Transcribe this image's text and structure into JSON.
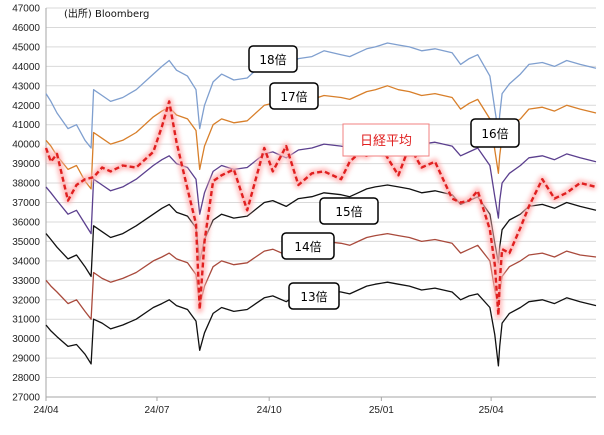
{
  "source": "(出所) Bloomberg",
  "chart_data": {
    "type": "line",
    "title": "",
    "xlabel": "",
    "ylabel": "",
    "ylim": [
      27000,
      47000
    ],
    "yticks": [
      27000,
      28000,
      29000,
      30000,
      31000,
      32000,
      33000,
      34000,
      35000,
      36000,
      37000,
      38000,
      39000,
      40000,
      41000,
      42000,
      43000,
      44000,
      45000,
      46000,
      47000
    ],
    "ytick_labels": [
      "27000",
      "28000",
      "29000",
      "30000",
      "31000",
      "32000",
      "33000",
      "34000",
      "35000",
      "36000",
      "37000",
      "38000",
      "39000",
      "40000",
      "41000",
      "42000",
      "43000",
      "44000",
      "45000",
      "46000",
      "47000"
    ],
    "xlim": [
      "2024-04-01",
      "2025-06-26"
    ],
    "xticks": [
      "2024-04-01",
      "2024-07-01",
      "2024-10-01",
      "2025-01-01",
      "2025-04-01"
    ],
    "xtick_labels": [
      "24/04",
      "24/07",
      "24/10",
      "25/01",
      "25/04"
    ],
    "grid": "horizontal",
    "series": [
      {
        "name": "18倍",
        "color": "#7f9fcf",
        "x": [
          "2024-04-01",
          "2024-04-05",
          "2024-04-10",
          "2024-04-19",
          "2024-04-26",
          "2024-05-03",
          "2024-05-08",
          "2024-05-10",
          "2024-05-17",
          "2024-05-24",
          "2024-06-03",
          "2024-06-14",
          "2024-06-28",
          "2024-07-05",
          "2024-07-11",
          "2024-07-17",
          "2024-07-26",
          "2024-08-02",
          "2024-08-05",
          "2024-08-09",
          "2024-08-16",
          "2024-08-23",
          "2024-09-02",
          "2024-09-13",
          "2024-09-27",
          "2024-10-04",
          "2024-10-15",
          "2024-10-25",
          "2024-11-05",
          "2024-11-15",
          "2024-11-29",
          "2024-12-06",
          "2024-12-13",
          "2024-12-20",
          "2024-12-27",
          "2025-01-06",
          "2025-01-15",
          "2025-01-24",
          "2025-02-03",
          "2025-02-14",
          "2025-02-28",
          "2025-03-07",
          "2025-03-14",
          "2025-03-21",
          "2025-03-31",
          "2025-04-04",
          "2025-04-07",
          "2025-04-08",
          "2025-04-10",
          "2025-04-16",
          "2025-04-25",
          "2025-05-02",
          "2025-05-13",
          "2025-05-23",
          "2025-06-02",
          "2025-06-13",
          "2025-06-26"
        ],
        "y": [
          42600,
          42200,
          41600,
          40800,
          41000,
          40200,
          39800,
          42800,
          42500,
          42200,
          42400,
          42800,
          43600,
          44000,
          44300,
          43800,
          43500,
          42800,
          40800,
          42000,
          43200,
          43600,
          43300,
          43400,
          44200,
          44300,
          44000,
          44400,
          44500,
          44800,
          44600,
          44500,
          44700,
          44900,
          45000,
          45200,
          45100,
          45000,
          44800,
          44900,
          44700,
          44100,
          44400,
          44600,
          43500,
          41800,
          40600,
          41500,
          42600,
          43100,
          43600,
          44100,
          44200,
          44000,
          44300,
          44100,
          43900
        ]
      },
      {
        "name": "17倍",
        "color": "#d87f2a",
        "x": [
          "2024-04-01",
          "2024-04-05",
          "2024-04-10",
          "2024-04-19",
          "2024-04-26",
          "2024-05-03",
          "2024-05-08",
          "2024-05-10",
          "2024-05-17",
          "2024-05-24",
          "2024-06-03",
          "2024-06-14",
          "2024-06-28",
          "2024-07-05",
          "2024-07-11",
          "2024-07-17",
          "2024-07-26",
          "2024-08-02",
          "2024-08-05",
          "2024-08-09",
          "2024-08-16",
          "2024-08-23",
          "2024-09-02",
          "2024-09-13",
          "2024-09-27",
          "2024-10-04",
          "2024-10-15",
          "2024-10-25",
          "2024-11-05",
          "2024-11-15",
          "2024-11-29",
          "2024-12-06",
          "2024-12-13",
          "2024-12-20",
          "2024-12-27",
          "2025-01-06",
          "2025-01-15",
          "2025-01-24",
          "2025-02-03",
          "2025-02-14",
          "2025-02-28",
          "2025-03-07",
          "2025-03-14",
          "2025-03-21",
          "2025-03-31",
          "2025-04-04",
          "2025-04-07",
          "2025-04-08",
          "2025-04-10",
          "2025-04-16",
          "2025-04-25",
          "2025-05-02",
          "2025-05-13",
          "2025-05-23",
          "2025-06-02",
          "2025-06-13",
          "2025-06-26"
        ],
        "y": [
          40200,
          39900,
          39400,
          38700,
          38900,
          38100,
          37700,
          40600,
          40300,
          40000,
          40200,
          40600,
          41400,
          41700,
          41900,
          41500,
          41300,
          40700,
          38700,
          39900,
          41000,
          41300,
          41100,
          41200,
          42000,
          42100,
          41800,
          42200,
          42300,
          42500,
          42400,
          42300,
          42500,
          42700,
          42800,
          43000,
          42800,
          42700,
          42500,
          42600,
          42400,
          41800,
          42100,
          42300,
          41300,
          39700,
          38500,
          39400,
          40400,
          40900,
          41300,
          41800,
          41900,
          41700,
          42000,
          41800,
          41600
        ]
      },
      {
        "name": "16倍",
        "color": "#5b3f8e",
        "x": [
          "2024-04-01",
          "2024-04-05",
          "2024-04-10",
          "2024-04-19",
          "2024-04-26",
          "2024-05-03",
          "2024-05-08",
          "2024-05-10",
          "2024-05-17",
          "2024-05-24",
          "2024-06-03",
          "2024-06-14",
          "2024-06-28",
          "2024-07-05",
          "2024-07-11",
          "2024-07-17",
          "2024-07-26",
          "2024-08-02",
          "2024-08-05",
          "2024-08-09",
          "2024-08-16",
          "2024-08-23",
          "2024-09-02",
          "2024-09-13",
          "2024-09-27",
          "2024-10-04",
          "2024-10-15",
          "2024-10-25",
          "2024-11-05",
          "2024-11-15",
          "2024-11-29",
          "2024-12-06",
          "2024-12-13",
          "2024-12-20",
          "2024-12-27",
          "2025-01-06",
          "2025-01-15",
          "2025-01-24",
          "2025-02-03",
          "2025-02-14",
          "2025-02-28",
          "2025-03-07",
          "2025-03-14",
          "2025-03-21",
          "2025-03-31",
          "2025-04-04",
          "2025-04-07",
          "2025-04-08",
          "2025-04-10",
          "2025-04-16",
          "2025-04-25",
          "2025-05-02",
          "2025-05-13",
          "2025-05-23",
          "2025-06-02",
          "2025-06-13",
          "2025-06-26"
        ],
        "y": [
          37800,
          37500,
          37100,
          36400,
          36600,
          35900,
          35400,
          38200,
          37900,
          37600,
          37800,
          38200,
          38900,
          39200,
          39400,
          39000,
          38800,
          38200,
          36400,
          37500,
          38600,
          38900,
          38700,
          38800,
          39500,
          39600,
          39300,
          39700,
          39800,
          40000,
          39900,
          39800,
          40000,
          40200,
          40300,
          40400,
          40300,
          40200,
          40000,
          40100,
          39900,
          39400,
          39600,
          39800,
          38900,
          37300,
          36200,
          37100,
          38000,
          38500,
          38900,
          39300,
          39400,
          39200,
          39500,
          39300,
          39100
        ]
      },
      {
        "name": "15倍",
        "color": "#111111",
        "x": [
          "2024-04-01",
          "2024-04-05",
          "2024-04-10",
          "2024-04-19",
          "2024-04-26",
          "2024-05-03",
          "2024-05-08",
          "2024-05-10",
          "2024-05-17",
          "2024-05-24",
          "2024-06-03",
          "2024-06-14",
          "2024-06-28",
          "2024-07-05",
          "2024-07-11",
          "2024-07-17",
          "2024-07-26",
          "2024-08-02",
          "2024-08-05",
          "2024-08-09",
          "2024-08-16",
          "2024-08-23",
          "2024-09-02",
          "2024-09-13",
          "2024-09-27",
          "2024-10-04",
          "2024-10-15",
          "2024-10-25",
          "2024-11-05",
          "2024-11-15",
          "2024-11-29",
          "2024-12-06",
          "2024-12-13",
          "2024-12-20",
          "2024-12-27",
          "2025-01-06",
          "2025-01-15",
          "2025-01-24",
          "2025-02-03",
          "2025-02-14",
          "2025-02-28",
          "2025-03-07",
          "2025-03-14",
          "2025-03-21",
          "2025-03-31",
          "2025-04-04",
          "2025-04-07",
          "2025-04-08",
          "2025-04-10",
          "2025-04-16",
          "2025-04-25",
          "2025-05-02",
          "2025-05-13",
          "2025-05-23",
          "2025-06-02",
          "2025-06-13",
          "2025-06-26"
        ],
        "y": [
          35400,
          35100,
          34700,
          34100,
          34300,
          33700,
          33200,
          35800,
          35500,
          35200,
          35400,
          35800,
          36400,
          36700,
          36900,
          36500,
          36300,
          35700,
          34000,
          35100,
          36100,
          36400,
          36200,
          36300,
          37000,
          37100,
          36800,
          37200,
          37300,
          37500,
          37400,
          37300,
          37500,
          37700,
          37800,
          37900,
          37800,
          37700,
          37500,
          37600,
          37400,
          36900,
          37100,
          37300,
          36400,
          34900,
          33900,
          34700,
          35600,
          36100,
          36400,
          36800,
          36900,
          36700,
          37000,
          36800,
          36600
        ]
      },
      {
        "name": "14倍",
        "color": "#a94a3c",
        "x": [
          "2024-04-01",
          "2024-04-05",
          "2024-04-10",
          "2024-04-19",
          "2024-04-26",
          "2024-05-03",
          "2024-05-08",
          "2024-05-10",
          "2024-05-17",
          "2024-05-24",
          "2024-06-03",
          "2024-06-14",
          "2024-06-28",
          "2024-07-05",
          "2024-07-11",
          "2024-07-17",
          "2024-07-26",
          "2024-08-02",
          "2024-08-05",
          "2024-08-09",
          "2024-08-16",
          "2024-08-23",
          "2024-09-02",
          "2024-09-13",
          "2024-09-27",
          "2024-10-04",
          "2024-10-15",
          "2024-10-25",
          "2024-11-05",
          "2024-11-15",
          "2024-11-29",
          "2024-12-06",
          "2024-12-13",
          "2024-12-20",
          "2024-12-27",
          "2025-01-06",
          "2025-01-15",
          "2025-01-24",
          "2025-02-03",
          "2025-02-14",
          "2025-02-28",
          "2025-03-07",
          "2025-03-14",
          "2025-03-21",
          "2025-03-31",
          "2025-04-04",
          "2025-04-07",
          "2025-04-08",
          "2025-04-10",
          "2025-04-16",
          "2025-04-25",
          "2025-05-02",
          "2025-05-13",
          "2025-05-23",
          "2025-06-02",
          "2025-06-13",
          "2025-06-26"
        ],
        "y": [
          33000,
          32700,
          32400,
          31800,
          32000,
          31400,
          31000,
          33400,
          33100,
          32900,
          33100,
          33400,
          34000,
          34200,
          34400,
          34100,
          33900,
          33300,
          31700,
          32700,
          33700,
          34000,
          33800,
          33900,
          34500,
          34600,
          34300,
          34700,
          34800,
          35000,
          34900,
          34800,
          35000,
          35200,
          35300,
          35400,
          35300,
          35200,
          35000,
          35100,
          34900,
          34400,
          34600,
          34800,
          34000,
          32500,
          31600,
          32400,
          33200,
          33700,
          34000,
          34300,
          34400,
          34200,
          34500,
          34300,
          34200
        ]
      },
      {
        "name": "13倍",
        "color": "#111111",
        "x": [
          "2024-04-01",
          "2024-04-05",
          "2024-04-10",
          "2024-04-19",
          "2024-04-26",
          "2024-05-03",
          "2024-05-08",
          "2024-05-10",
          "2024-05-17",
          "2024-05-24",
          "2024-06-03",
          "2024-06-14",
          "2024-06-28",
          "2024-07-05",
          "2024-07-11",
          "2024-07-17",
          "2024-07-26",
          "2024-08-02",
          "2024-08-05",
          "2024-08-09",
          "2024-08-16",
          "2024-08-23",
          "2024-09-02",
          "2024-09-13",
          "2024-09-27",
          "2024-10-04",
          "2024-10-15",
          "2024-10-25",
          "2024-11-05",
          "2024-11-15",
          "2024-11-29",
          "2024-12-06",
          "2024-12-13",
          "2024-12-20",
          "2024-12-27",
          "2025-01-06",
          "2025-01-15",
          "2025-01-24",
          "2025-02-03",
          "2025-02-14",
          "2025-02-28",
          "2025-03-07",
          "2025-03-14",
          "2025-03-21",
          "2025-03-31",
          "2025-04-04",
          "2025-04-07",
          "2025-04-08",
          "2025-04-10",
          "2025-04-16",
          "2025-04-25",
          "2025-05-02",
          "2025-05-13",
          "2025-05-23",
          "2025-06-02",
          "2025-06-13",
          "2025-06-26"
        ],
        "y": [
          30700,
          30400,
          30100,
          29600,
          29700,
          29200,
          28700,
          31000,
          30800,
          30500,
          30700,
          31000,
          31600,
          31800,
          32000,
          31700,
          31500,
          30900,
          29400,
          30300,
          31300,
          31600,
          31400,
          31500,
          32100,
          32200,
          31900,
          32300,
          32400,
          32500,
          32400,
          32300,
          32500,
          32700,
          32800,
          32900,
          32800,
          32700,
          32500,
          32600,
          32400,
          32000,
          32200,
          32300,
          31600,
          30200,
          28600,
          29600,
          30800,
          31300,
          31600,
          31900,
          32000,
          31800,
          32100,
          31900,
          31700
        ]
      },
      {
        "name": "日経平均",
        "color": "#e02020",
        "style": "dashed-glow",
        "x": [
          "2024-04-01",
          "2024-04-05",
          "2024-04-10",
          "2024-04-19",
          "2024-04-26",
          "2024-05-03",
          "2024-05-10",
          "2024-05-17",
          "2024-05-24",
          "2024-06-03",
          "2024-06-14",
          "2024-06-28",
          "2024-07-05",
          "2024-07-11",
          "2024-07-17",
          "2024-07-26",
          "2024-08-02",
          "2024-08-05",
          "2024-08-09",
          "2024-08-16",
          "2024-08-23",
          "2024-09-02",
          "2024-09-13",
          "2024-09-27",
          "2024-10-04",
          "2024-10-15",
          "2024-10-25",
          "2024-11-05",
          "2024-11-15",
          "2024-11-29",
          "2024-12-06",
          "2024-12-13",
          "2024-12-20",
          "2024-12-27",
          "2025-01-06",
          "2025-01-15",
          "2025-01-24",
          "2025-02-03",
          "2025-02-14",
          "2025-02-28",
          "2025-03-07",
          "2025-03-14",
          "2025-03-21",
          "2025-03-31",
          "2025-04-04",
          "2025-04-07",
          "2025-04-08",
          "2025-04-10",
          "2025-04-16",
          "2025-04-25",
          "2025-05-02",
          "2025-05-13",
          "2025-05-23",
          "2025-06-02",
          "2025-06-13",
          "2025-06-26"
        ],
        "y": [
          39800,
          39100,
          39500,
          37100,
          37900,
          38200,
          38300,
          38800,
          38600,
          38900,
          38800,
          39600,
          40900,
          42200,
          40100,
          37700,
          35900,
          31500,
          35000,
          38100,
          38400,
          38700,
          36600,
          39800,
          38600,
          39900,
          37900,
          38500,
          38600,
          38200,
          39100,
          39500,
          39400,
          40300,
          39300,
          38400,
          39900,
          38800,
          39100,
          37200,
          37000,
          37100,
          37600,
          35600,
          33800,
          31200,
          32900,
          34600,
          34400,
          35700,
          36800,
          38200,
          37200,
          37500,
          38000,
          37800
        ]
      }
    ]
  },
  "labels": {
    "r18": "18倍",
    "r17": "17倍",
    "r16": "16倍",
    "r15": "15倍",
    "r14": "14倍",
    "r13": "13倍",
    "nikkei": "日経平均"
  }
}
